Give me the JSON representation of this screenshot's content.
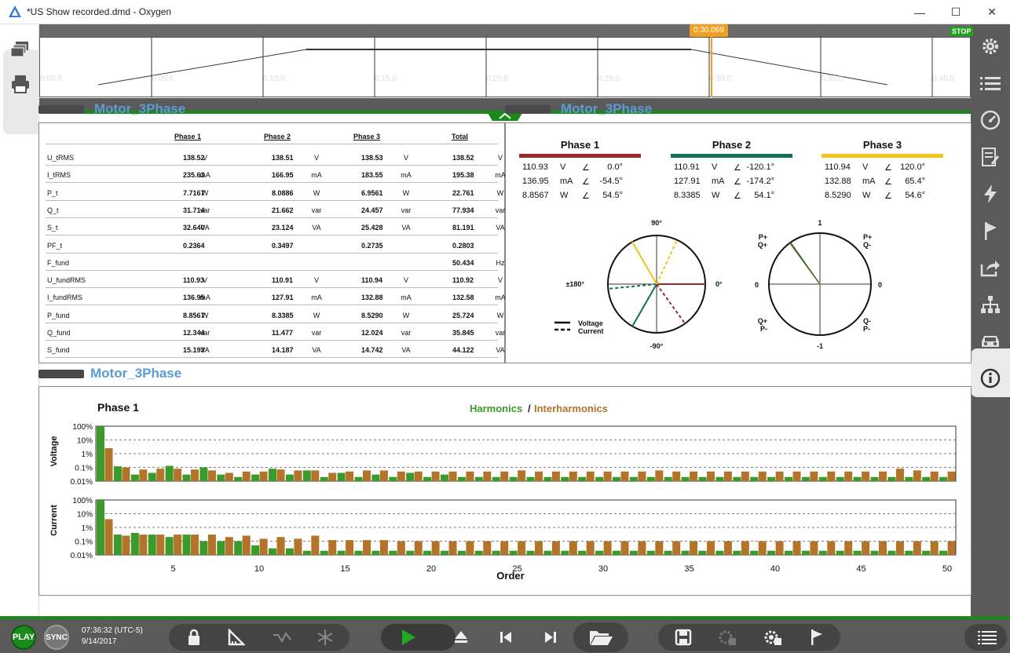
{
  "window": {
    "title": "*US Show recorded.dmd - Oxygen",
    "minimize": "—",
    "maximize": "☐",
    "close": "✕"
  },
  "timeline": {
    "marker": "0:30.069",
    "stop_label": "STOP",
    "ticks": [
      "0:00.0",
      "0:05.0",
      "0:10.0",
      "0:15.0",
      "0:20.0",
      "0:25.0",
      "0:30.0",
      "0:35.0",
      "0:40.0"
    ]
  },
  "panels": {
    "table_title": "Motor_3Phase",
    "vector_title": "Motor_3Phase",
    "harm_title": "Motor_3Phase"
  },
  "table": {
    "headers": [
      "Phase 1",
      "Phase 2",
      "Phase 3",
      "Total"
    ],
    "rows": [
      {
        "name": "U_tRMS",
        "v": [
          "138.52",
          "138.51",
          "138.53",
          "138.52"
        ],
        "u": [
          "V",
          "V",
          "V",
          "V"
        ]
      },
      {
        "name": "I_tRMS",
        "v": [
          "235.63",
          "166.95",
          "183.55",
          "195.38"
        ],
        "u": [
          "mA",
          "mA",
          "mA",
          "mA"
        ]
      },
      {
        "name": "P_t",
        "v": [
          "7.7167",
          "8.0886",
          "6.9561",
          "22.761"
        ],
        "u": [
          "W",
          "W",
          "W",
          "W"
        ]
      },
      {
        "name": "Q_t",
        "v": [
          "31.714",
          "21.662",
          "24.457",
          "77.934"
        ],
        "u": [
          "var",
          "var",
          "var",
          "var"
        ]
      },
      {
        "name": "S_t",
        "v": [
          "32.640",
          "23.124",
          "25.428",
          "81.191"
        ],
        "u": [
          "VA",
          "VA",
          "VA",
          "VA"
        ]
      },
      {
        "name": "PF_t",
        "v": [
          "0.2364",
          "0.3497",
          "0.2735",
          "0.2803"
        ],
        "u": [
          "",
          "",
          "",
          ""
        ]
      },
      {
        "name": "F_fund",
        "v": [
          "",
          "",
          "",
          "50.434"
        ],
        "u": [
          "",
          "",
          "",
          "Hz"
        ]
      },
      {
        "name": "U_fundRMS",
        "v": [
          "110.93",
          "110.91",
          "110.94",
          "110.92"
        ],
        "u": [
          "V",
          "V",
          "V",
          "V"
        ]
      },
      {
        "name": "I_fundRMS",
        "v": [
          "136.95",
          "127.91",
          "132.88",
          "132.58"
        ],
        "u": [
          "mA",
          "mA",
          "mA",
          "mA"
        ]
      },
      {
        "name": "P_fund",
        "v": [
          "8.8567",
          "8.3385",
          "8.5290",
          "25.724"
        ],
        "u": [
          "W",
          "W",
          "W",
          "W"
        ]
      },
      {
        "name": "Q_fund",
        "v": [
          "12.344",
          "11.477",
          "12.024",
          "35.845"
        ],
        "u": [
          "var",
          "var",
          "var",
          "var"
        ]
      },
      {
        "name": "S_fund",
        "v": [
          "15.193",
          "14.187",
          "14.742",
          "44.122"
        ],
        "u": [
          "VA",
          "VA",
          "VA",
          "VA"
        ]
      }
    ]
  },
  "vector": {
    "phases": [
      {
        "name": "Phase 1",
        "color": "#9b2a2a",
        "lines": [
          [
            "110.93",
            "V",
            "∠",
            "0.0°"
          ],
          [
            "136.95",
            "mA",
            "∠",
            "-54.5°"
          ],
          [
            "8.8567",
            "W",
            "∠",
            "54.5°"
          ]
        ]
      },
      {
        "name": "Phase 2",
        "color": "#117055",
        "lines": [
          [
            "110.91",
            "V",
            "∠",
            "-120.1°"
          ],
          [
            "127.91",
            "mA",
            "∠",
            "-174.2°"
          ],
          [
            "8.3385",
            "W",
            "∠",
            "54.1°"
          ]
        ]
      },
      {
        "name": "Phase 3",
        "color": "#f0c41a",
        "lines": [
          [
            "110.94",
            "V",
            "∠",
            "120.0°"
          ],
          [
            "132.88",
            "mA",
            "∠",
            "65.4°"
          ],
          [
            "8.5290",
            "W",
            "∠",
            "54.6°"
          ]
        ]
      }
    ],
    "polar_labels": {
      "top": "90°",
      "bottom": "-90°",
      "left": "±180°",
      "right": "0°"
    },
    "legend": {
      "voltage": "Voltage",
      "current": "Current"
    },
    "pq_labels": {
      "top": "1",
      "bottom": "-1",
      "left": "0",
      "right": "0",
      "tl": "P+",
      "tl2": "Q+",
      "tr": "P+",
      "tr2": "Q-",
      "bl": "Q+",
      "bl2": "P-",
      "br": "Q-",
      "br2": "P-"
    }
  },
  "harmonics": {
    "phase_label": "Phase 1",
    "legend_h": "Harmonics",
    "legend_sep": "/",
    "legend_ih": "Interharmonics",
    "voltage_label": "Voltage",
    "current_label": "Current",
    "yticks": [
      "100%",
      "10%",
      "1%",
      "0.1%",
      "0.01%"
    ],
    "xticks": [
      "5",
      "10",
      "15",
      "20",
      "25",
      "30",
      "35",
      "40",
      "45",
      "50"
    ],
    "xlabel": "Order",
    "color_h": "#3a9a2a",
    "color_ih": "#b3742a"
  },
  "chart_data": [
    {
      "type": "bar",
      "title": "Phase 1",
      "ylabel": "Voltage",
      "xlabel": "Order",
      "yscale": "log",
      "ylim": [
        0.01,
        100
      ],
      "x": [
        1,
        2,
        3,
        4,
        5,
        6,
        7,
        8,
        9,
        10,
        11,
        12,
        13,
        14,
        15,
        16,
        17,
        18,
        19,
        20,
        21,
        22,
        23,
        24,
        25,
        26,
        27,
        28,
        29,
        30,
        31,
        32,
        33,
        34,
        35,
        36,
        37,
        38,
        39,
        40,
        41,
        42,
        43,
        44,
        45,
        46,
        47,
        48,
        49,
        50
      ],
      "series": [
        {
          "name": "Harmonics",
          "values": [
            100,
            0.12,
            0.03,
            0.04,
            0.13,
            0.03,
            0.1,
            0.03,
            0.02,
            0.03,
            0.08,
            0.03,
            0.06,
            0.02,
            0.04,
            0.02,
            0.03,
            0.02,
            0.04,
            0.02,
            0.03,
            0.02,
            0.02,
            0.02,
            0.02,
            0.02,
            0.02,
            0.02,
            0.02,
            0.02,
            0.02,
            0.02,
            0.02,
            0.02,
            0.02,
            0.02,
            0.02,
            0.02,
            0.02,
            0.02,
            0.02,
            0.02,
            0.02,
            0.02,
            0.02,
            0.02,
            0.02,
            0.02,
            0.02,
            0.02
          ]
        },
        {
          "name": "Interharmonics",
          "values": [
            2.5,
            0.1,
            0.07,
            0.08,
            0.08,
            0.07,
            0.06,
            0.04,
            0.05,
            0.05,
            0.07,
            0.06,
            0.06,
            0.04,
            0.05,
            0.06,
            0.06,
            0.05,
            0.05,
            0.05,
            0.05,
            0.05,
            0.05,
            0.05,
            0.06,
            0.05,
            0.05,
            0.05,
            0.05,
            0.05,
            0.05,
            0.05,
            0.06,
            0.05,
            0.05,
            0.05,
            0.05,
            0.05,
            0.05,
            0.05,
            0.05,
            0.05,
            0.05,
            0.05,
            0.05,
            0.05,
            0.08,
            0.06,
            0.05,
            0.05
          ]
        }
      ]
    },
    {
      "type": "bar",
      "ylabel": "Current",
      "xlabel": "Order",
      "yscale": "log",
      "ylim": [
        0.01,
        100
      ],
      "x": [
        1,
        2,
        3,
        4,
        5,
        6,
        7,
        8,
        9,
        10,
        11,
        12,
        13,
        14,
        15,
        16,
        17,
        18,
        19,
        20,
        21,
        22,
        23,
        24,
        25,
        26,
        27,
        28,
        29,
        30,
        31,
        32,
        33,
        34,
        35,
        36,
        37,
        38,
        39,
        40,
        41,
        42,
        43,
        44,
        45,
        46,
        47,
        48,
        49,
        50
      ],
      "series": [
        {
          "name": "Harmonics",
          "values": [
            100,
            0.3,
            0.4,
            0.3,
            0.2,
            0.3,
            0.1,
            0.1,
            0.1,
            0.05,
            0.03,
            0.03,
            0.02,
            0.02,
            0.02,
            0.02,
            0.02,
            0.02,
            0.02,
            0.02,
            0.02,
            0.02,
            0.02,
            0.02,
            0.02,
            0.02,
            0.02,
            0.02,
            0.02,
            0.02,
            0.02,
            0.02,
            0.02,
            0.02,
            0.02,
            0.02,
            0.02,
            0.02,
            0.02,
            0.02,
            0.02,
            0.02,
            0.02,
            0.02,
            0.02,
            0.02,
            0.02,
            0.02,
            0.02,
            0.02
          ]
        },
        {
          "name": "Interharmonics",
          "values": [
            4,
            0.25,
            0.3,
            0.3,
            0.3,
            0.3,
            0.3,
            0.2,
            0.25,
            0.15,
            0.2,
            0.15,
            0.25,
            0.12,
            0.12,
            0.12,
            0.12,
            0.1,
            0.1,
            0.1,
            0.1,
            0.1,
            0.1,
            0.1,
            0.1,
            0.1,
            0.1,
            0.1,
            0.1,
            0.1,
            0.1,
            0.1,
            0.1,
            0.1,
            0.1,
            0.1,
            0.1,
            0.1,
            0.1,
            0.1,
            0.1,
            0.1,
            0.1,
            0.1,
            0.1,
            0.1,
            0.1,
            0.1,
            0.1,
            0.1
          ]
        }
      ]
    }
  ],
  "bottom": {
    "play": "PLAY",
    "sync": "SYNC",
    "time": "07:36:32 (UTC-5)",
    "date": "9/14/2017"
  }
}
